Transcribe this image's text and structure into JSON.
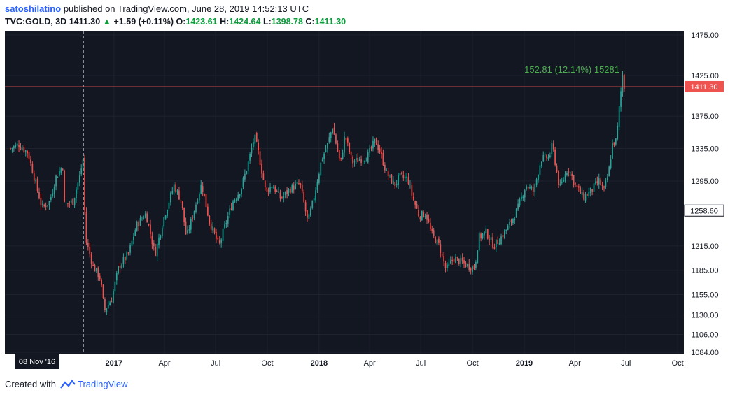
{
  "header": {
    "author": "satoshilatino",
    "published_text": "published on TradingView.com, June 28, 2019 14:52:13 UTC",
    "symbol": "TVC:GOLD, 3D",
    "last": "1411.30",
    "change": "+1.59 (+0.11%)",
    "o_label": "O:",
    "o_value": "1423.61",
    "h_label": "H:",
    "h_value": "1424.64",
    "l_label": "L:",
    "l_value": "1398.78",
    "c_label": "C:",
    "c_value": "1411.30"
  },
  "footer": {
    "created_with": "Created with",
    "brand": "TradingView"
  },
  "colors": {
    "background": "#131722",
    "up": "#26a69a",
    "down": "#ef5350",
    "grid": "#2a2e39",
    "axis_text": "#131722",
    "measure_text": "#4caf50"
  },
  "chart_data": {
    "type": "candlestick",
    "title": "",
    "y_axis": {
      "labels": [
        "1475.00",
        "1425.00",
        "1375.00",
        "1335.00",
        "1295.00",
        "1258.60",
        "1215.00",
        "1185.00",
        "1155.00",
        "1130.00",
        "1106.00",
        "1084.00"
      ],
      "range": [
        1084,
        1475
      ]
    },
    "x_axis": {
      "labels": [
        "2017",
        "Apr",
        "Jul",
        "Oct",
        "2018",
        "Apr",
        "Jul",
        "Oct",
        "2019",
        "Apr",
        "Jul",
        "Oct"
      ]
    },
    "crosshair_x_label": "08 Nov '16",
    "last_price_label": "1411.30",
    "price_marker_label": "1258.60",
    "measure_label": "152.81 (12.14%) 15281",
    "close_path": [
      [
        "2016-07-01",
        1335
      ],
      [
        "2016-07-15",
        1340
      ],
      [
        "2016-08-01",
        1330
      ],
      [
        "2016-08-12",
        1300
      ],
      [
        "2016-08-26",
        1262
      ],
      [
        "2016-09-09",
        1270
      ],
      [
        "2016-09-20",
        1300
      ],
      [
        "2016-10-03",
        1315
      ],
      [
        "2016-10-05",
        1266
      ],
      [
        "2016-10-20",
        1270
      ],
      [
        "2016-11-01",
        1300
      ],
      [
        "2016-11-08",
        1325
      ],
      [
        "2016-11-11",
        1225
      ],
      [
        "2016-11-25",
        1190
      ],
      [
        "2016-12-08",
        1175
      ],
      [
        "2016-12-15",
        1135
      ],
      [
        "2016-12-28",
        1150
      ],
      [
        "2017-01-10",
        1190
      ],
      [
        "2017-01-27",
        1205
      ],
      [
        "2017-02-10",
        1240
      ],
      [
        "2017-02-27",
        1255
      ],
      [
        "2017-03-15",
        1205
      ],
      [
        "2017-03-31",
        1250
      ],
      [
        "2017-04-18",
        1290
      ],
      [
        "2017-05-01",
        1270
      ],
      [
        "2017-05-10",
        1225
      ],
      [
        "2017-05-25",
        1262
      ],
      [
        "2017-06-06",
        1292
      ],
      [
        "2017-06-20",
        1245
      ],
      [
        "2017-07-07",
        1215
      ],
      [
        "2017-07-20",
        1245
      ],
      [
        "2017-08-01",
        1270
      ],
      [
        "2017-08-15",
        1285
      ],
      [
        "2017-08-29",
        1320
      ],
      [
        "2017-09-08",
        1350
      ],
      [
        "2017-09-15",
        1330
      ],
      [
        "2017-09-28",
        1282
      ],
      [
        "2017-10-10",
        1290
      ],
      [
        "2017-10-25",
        1273
      ],
      [
        "2017-11-10",
        1285
      ],
      [
        "2017-11-28",
        1292
      ],
      [
        "2017-12-12",
        1244
      ],
      [
        "2017-12-22",
        1272
      ],
      [
        "2018-01-05",
        1320
      ],
      [
        "2018-01-16",
        1340
      ],
      [
        "2018-01-25",
        1362
      ],
      [
        "2018-02-08",
        1315
      ],
      [
        "2018-02-16",
        1352
      ],
      [
        "2018-03-01",
        1318
      ],
      [
        "2018-03-15",
        1322
      ],
      [
        "2018-03-28",
        1325
      ],
      [
        "2018-04-11",
        1345
      ],
      [
        "2018-04-20",
        1330
      ],
      [
        "2018-05-01",
        1305
      ],
      [
        "2018-05-15",
        1290
      ],
      [
        "2018-05-25",
        1300
      ],
      [
        "2018-06-08",
        1298
      ],
      [
        "2018-06-15",
        1278
      ],
      [
        "2018-06-28",
        1252
      ],
      [
        "2018-07-10",
        1255
      ],
      [
        "2018-07-20",
        1230
      ],
      [
        "2018-08-03",
        1215
      ],
      [
        "2018-08-15",
        1185
      ],
      [
        "2018-08-28",
        1200
      ],
      [
        "2018-09-11",
        1195
      ],
      [
        "2018-09-25",
        1190
      ],
      [
        "2018-10-05",
        1188
      ],
      [
        "2018-10-12",
        1225
      ],
      [
        "2018-10-25",
        1232
      ],
      [
        "2018-11-08",
        1215
      ],
      [
        "2018-11-20",
        1225
      ],
      [
        "2018-12-05",
        1240
      ],
      [
        "2018-12-20",
        1260
      ],
      [
        "2019-01-04",
        1290
      ],
      [
        "2019-01-18",
        1282
      ],
      [
        "2019-01-31",
        1322
      ],
      [
        "2019-02-15",
        1325
      ],
      [
        "2019-02-20",
        1340
      ],
      [
        "2019-03-05",
        1285
      ],
      [
        "2019-03-20",
        1312
      ],
      [
        "2019-04-02",
        1290
      ],
      [
        "2019-04-16",
        1275
      ],
      [
        "2019-04-30",
        1283
      ],
      [
        "2019-05-14",
        1295
      ],
      [
        "2019-05-23",
        1283
      ],
      [
        "2019-05-31",
        1305
      ],
      [
        "2019-06-07",
        1340
      ],
      [
        "2019-06-14",
        1345
      ],
      [
        "2019-06-20",
        1392
      ],
      [
        "2019-06-25",
        1425
      ],
      [
        "2019-06-28",
        1411.3
      ]
    ]
  }
}
